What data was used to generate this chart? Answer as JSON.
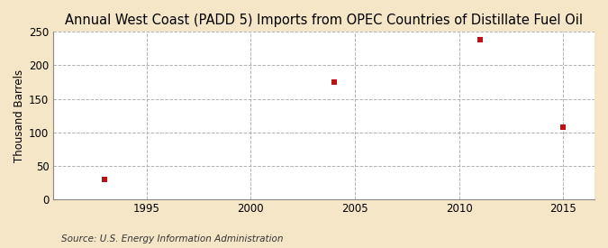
{
  "title": "Annual West Coast (PADD 5) Imports from OPEC Countries of Distillate Fuel Oil",
  "ylabel": "Thousand Barrels",
  "source": "Source: U.S. Energy Information Administration",
  "x_data": [
    1993,
    2004,
    2011,
    2015
  ],
  "y_data": [
    30,
    175,
    238,
    107
  ],
  "xlim": [
    1990.5,
    2016.5
  ],
  "ylim": [
    0,
    250
  ],
  "yticks": [
    0,
    50,
    100,
    150,
    200,
    250
  ],
  "xticks": [
    1995,
    2000,
    2005,
    2010,
    2015
  ],
  "marker_color": "#bb1111",
  "marker_size": 5,
  "figure_bg_color": "#f5e6c8",
  "plot_bg_color": "#ffffff",
  "grid_color": "#aaaaaa",
  "title_fontsize": 10.5,
  "label_fontsize": 8.5,
  "tick_fontsize": 8.5,
  "source_fontsize": 7.5
}
